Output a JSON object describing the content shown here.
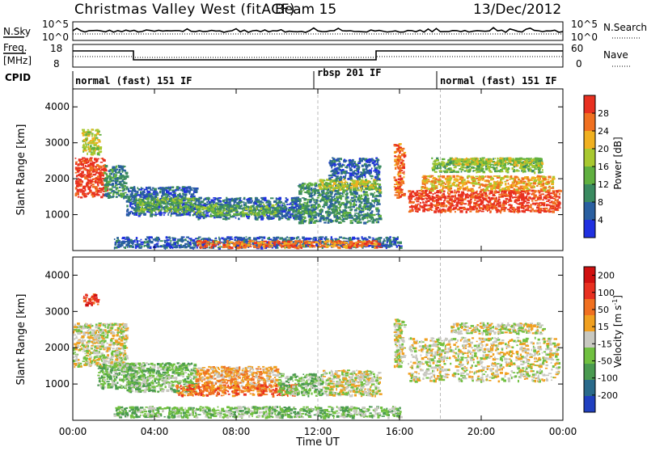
{
  "header": {
    "title": "Christmas Valley West (fitACF)",
    "beam": "Beam 15",
    "date": "13/Dec/2012"
  },
  "top_panels": {
    "nsky_label": "N.Sky",
    "nsky_ticks": [
      "10^5",
      "10^0"
    ],
    "nsearch_label": "N.Search",
    "nsearch_ticks": [
      "10^5",
      "10^0"
    ],
    "freq_label_line1": "Freq.",
    "freq_label_line2": "[MHz]",
    "freq_ticks": [
      "18",
      "8"
    ],
    "nave_label": "Nave",
    "nave_ticks": [
      "60",
      "0"
    ],
    "cpid_label": "CPID"
  },
  "cpid_segments": [
    {
      "label": "normal (fast) 151 IF",
      "start_hour": 0
    },
    {
      "label": "rbsp 201 IF",
      "start_hour": 12
    },
    {
      "label": "normal (fast) 151 IF",
      "start_hour": 18
    }
  ],
  "colors": {
    "power": [
      "#2030e0",
      "#2a5fa0",
      "#3a8a60",
      "#60b040",
      "#a8c830",
      "#f0b020",
      "#f07020",
      "#e83020"
    ],
    "velocity": [
      "#2040c0",
      "#2a6a8a",
      "#4a9a50",
      "#70c040",
      "#c8c8c0",
      "#f0a020",
      "#f07020",
      "#e83020",
      "#d01010"
    ]
  },
  "chart_data": [
    {
      "type": "heatmap",
      "name": "power",
      "ylabel": "Slant Range [km]",
      "yticks": [
        "1000",
        "2000",
        "3000",
        "4000"
      ],
      "ylim": [
        0,
        4500
      ],
      "xlim_hours": [
        0,
        24
      ],
      "colorbar_label": "Power [dB]",
      "colorbar_ticks": [
        "4",
        "8",
        "12",
        "16",
        "20",
        "24",
        "28"
      ],
      "regions": [
        {
          "t0": 0.1,
          "t1": 1.6,
          "r0": 1500,
          "r1": 2600,
          "level": 7
        },
        {
          "t0": 0.4,
          "t1": 1.3,
          "r0": 2700,
          "r1": 3400,
          "level": 4
        },
        {
          "t0": 1.5,
          "t1": 2.6,
          "r0": 1500,
          "r1": 2400,
          "level": 2
        },
        {
          "t0": 2.6,
          "t1": 6.0,
          "r0": 1000,
          "r1": 1800,
          "level": 1
        },
        {
          "t0": 3.0,
          "t1": 6.0,
          "r0": 1100,
          "r1": 1500,
          "level": 3
        },
        {
          "t0": 6.0,
          "t1": 11.0,
          "r0": 900,
          "r1": 1500,
          "level": 1
        },
        {
          "t0": 6.0,
          "t1": 10.0,
          "r0": 1000,
          "r1": 1300,
          "level": 3
        },
        {
          "t0": 11.0,
          "t1": 15.0,
          "r0": 800,
          "r1": 1900,
          "level": 2
        },
        {
          "t0": 12.0,
          "t1": 15.0,
          "r0": 1700,
          "r1": 2000,
          "level": 4
        },
        {
          "t0": 12.5,
          "t1": 15.0,
          "r0": 2000,
          "r1": 2600,
          "level": 1
        },
        {
          "t0": 15.7,
          "t1": 16.2,
          "r0": 1500,
          "r1": 3000,
          "level": 6
        },
        {
          "t0": 16.4,
          "t1": 23.8,
          "r0": 1100,
          "r1": 1700,
          "level": 7
        },
        {
          "t0": 17.0,
          "t1": 23.5,
          "r0": 1700,
          "r1": 2100,
          "level": 5
        },
        {
          "t0": 17.5,
          "t1": 23.0,
          "r0": 2200,
          "r1": 2600,
          "level": 3
        },
        {
          "t0": 18.5,
          "t1": 23.0,
          "r0": 2400,
          "r1": 2600,
          "level": 4
        },
        {
          "t0": 2.0,
          "t1": 16.0,
          "r0": 100,
          "r1": 400,
          "level": 1
        },
        {
          "t0": 6.0,
          "t1": 15.0,
          "r0": 100,
          "r1": 300,
          "level": 6
        }
      ]
    },
    {
      "type": "heatmap",
      "name": "velocity",
      "xlabel": "Time UT",
      "ylabel": "Slant Range [km]",
      "yticks": [
        "1000",
        "2000",
        "3000",
        "4000"
      ],
      "ylim": [
        0,
        4500
      ],
      "xlim_hours": [
        0,
        24
      ],
      "xticks": [
        "00:00",
        "04:00",
        "08:00",
        "12:00",
        "16:00",
        "20:00",
        "00:00"
      ],
      "colorbar_label": "Velocity [m s",
      "colorbar_label_sup": "-1",
      "colorbar_label_end": "]",
      "colorbar_ticks": [
        "200",
        "100",
        "50",
        "15",
        "-15",
        "-50",
        "-100",
        "-200"
      ],
      "regions": [
        {
          "t0": 0.0,
          "t1": 2.6,
          "r0": 1500,
          "r1": 2700,
          "level": 4
        },
        {
          "t0": 0.5,
          "t1": 1.2,
          "r0": 3200,
          "r1": 3500,
          "level": 7
        },
        {
          "t0": 1.2,
          "t1": 3.0,
          "r0": 900,
          "r1": 1600,
          "level": 3
        },
        {
          "t0": 2.6,
          "t1": 6.0,
          "r0": 800,
          "r1": 1600,
          "level": 3
        },
        {
          "t0": 6.0,
          "t1": 10.0,
          "r0": 900,
          "r1": 1500,
          "level": 5
        },
        {
          "t0": 5.0,
          "t1": 11.0,
          "r0": 700,
          "r1": 1000,
          "level": 6
        },
        {
          "t0": 10.0,
          "t1": 12.2,
          "r0": 700,
          "r1": 1300,
          "level": 3
        },
        {
          "t0": 12.2,
          "t1": 15.0,
          "r0": 700,
          "r1": 1400,
          "level": 4
        },
        {
          "t0": 15.7,
          "t1": 16.2,
          "r0": 1500,
          "r1": 2800,
          "level": 4
        },
        {
          "t0": 16.4,
          "t1": 23.8,
          "r0": 1100,
          "r1": 2300,
          "level": 4
        },
        {
          "t0": 18.5,
          "t1": 23.0,
          "r0": 2400,
          "r1": 2700,
          "level": 4
        },
        {
          "t0": 2.0,
          "t1": 16.0,
          "r0": 100,
          "r1": 400,
          "level": 3
        }
      ]
    }
  ]
}
